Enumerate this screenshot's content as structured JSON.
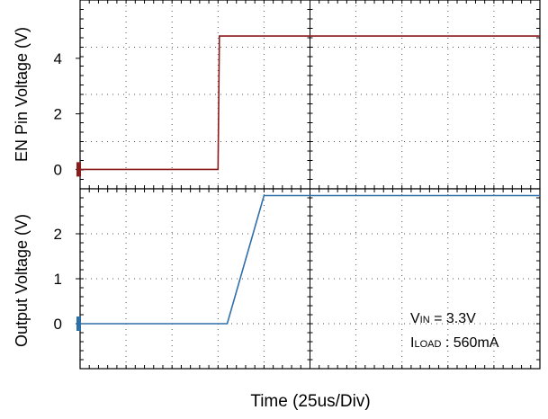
{
  "chart_data": [
    {
      "type": "line",
      "ylabel": "EN Pin Voltage (V)",
      "ylim": [
        -0.7,
        6.1
      ],
      "yticks": [
        0,
        2,
        4
      ],
      "yticks_labels": [
        "0",
        "2",
        "4"
      ],
      "x_divisions": 10,
      "series": [
        {
          "color": "#8b1a1a",
          "x": [
            0,
            3.0,
            3.03,
            10
          ],
          "y": [
            0,
            0,
            4.8,
            4.8
          ]
        }
      ]
    },
    {
      "type": "line",
      "ylabel": "Output Voltage (V)",
      "ylim": [
        -1,
        3
      ],
      "yticks": [
        0,
        1,
        2
      ],
      "yticks_labels": [
        "0",
        "1",
        "2"
      ],
      "x_divisions": 10,
      "series": [
        {
          "color": "#2f6fa8",
          "x": [
            0,
            3.2,
            4.0,
            10
          ],
          "y": [
            0,
            0,
            2.85,
            2.85
          ]
        }
      ]
    }
  ],
  "xlabel": "Time  (25us/Div)",
  "annotation": {
    "vin_main": "V",
    "vin_sub": "IN",
    "vin_value": " = 3.3V",
    "iload_main": "I",
    "iload_sub": "LOAD",
    "iload_value": " : 560mA"
  },
  "colors": {
    "en_trace": "#8b1a1a",
    "out_trace": "#2f6fa8",
    "grid": "#555555"
  }
}
